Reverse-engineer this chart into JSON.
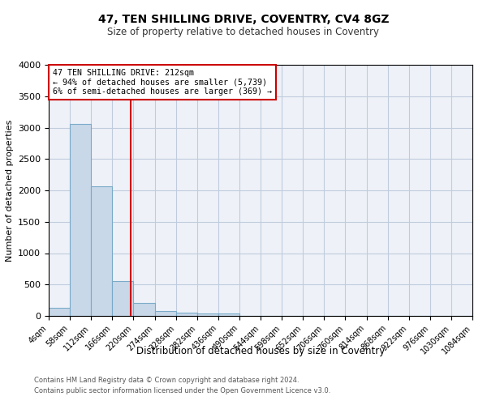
{
  "title": "47, TEN SHILLING DRIVE, COVENTRY, CV4 8GZ",
  "subtitle": "Size of property relative to detached houses in Coventry",
  "xlabel": "Distribution of detached houses by size in Coventry",
  "ylabel": "Number of detached properties",
  "property_label": "47 TEN SHILLING DRIVE: 212sqm",
  "annotation_line1": "← 94% of detached houses are smaller (5,739)",
  "annotation_line2": "6% of semi-detached houses are larger (369) →",
  "footer1": "Contains HM Land Registry data © Crown copyright and database right 2024.",
  "footer2": "Contains public sector information licensed under the Open Government Licence v3.0.",
  "bin_edges": [
    4,
    58,
    112,
    166,
    220,
    274,
    328,
    382,
    436,
    490,
    544,
    598,
    652,
    706,
    760,
    814,
    868,
    922,
    976,
    1030,
    1084
  ],
  "bar_heights": [
    130,
    3060,
    2060,
    560,
    210,
    80,
    55,
    45,
    40,
    0,
    0,
    0,
    0,
    0,
    0,
    0,
    0,
    0,
    0,
    0
  ],
  "bar_color": "#c8d8e8",
  "bar_edge_color": "#7aaac8",
  "vline_x": 212,
  "vline_color": "#cc0000",
  "annotation_box_color": "#cc0000",
  "ylim": [
    0,
    4000
  ],
  "yticks": [
    0,
    500,
    1000,
    1500,
    2000,
    2500,
    3000,
    3500,
    4000
  ],
  "grid_color": "#c0ccdd",
  "background_color": "#eef2f8"
}
